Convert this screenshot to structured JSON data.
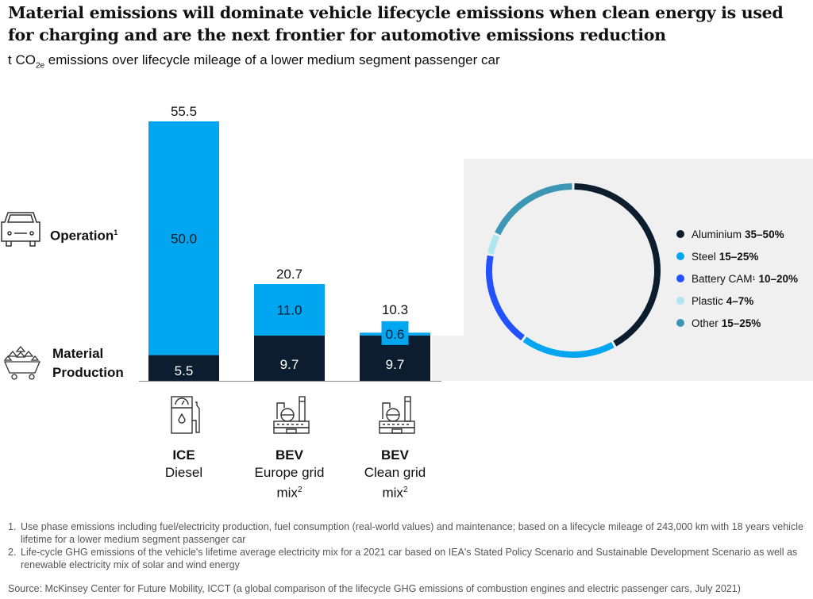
{
  "title": "Material emissions will dominate vehicle lifecycle emissions when clean energy is used for charging and are the next frontier for automotive emissions reduction",
  "subtitle": {
    "pre": "t CO",
    "sub": "2e",
    "post": " emissions over lifecycle mileage of a lower medium segment passenger car"
  },
  "chart_data": [
    {
      "type": "bar",
      "stacked": true,
      "categories": [
        {
          "bold": "ICE",
          "sub": "Diesel",
          "sup": ""
        },
        {
          "bold": "BEV",
          "sub": "Europe grid mix",
          "sup": "2"
        },
        {
          "bold": "BEV",
          "sub": "Clean grid mix",
          "sup": "2"
        }
      ],
      "series": [
        {
          "name": "Material Production",
          "values": [
            5.5,
            9.7,
            9.7
          ],
          "color": "#0b1d2e"
        },
        {
          "name": "Operation",
          "sup": "1",
          "values": [
            50.0,
            11.0,
            0.6
          ],
          "color": "#00a6f0"
        }
      ],
      "totals": [
        55.5,
        20.7,
        10.3
      ],
      "value_labels": {
        "Operation": [
          "50.0",
          "11.0",
          "0.6"
        ],
        "Material Production": [
          "5.5",
          "9.7",
          "9.7"
        ],
        "totals": [
          "55.5",
          "20.7",
          "10.3"
        ]
      },
      "icons": [
        "car-icon",
        "mine-cart-icon",
        "fuel-pump-icon",
        "power-plant-icon",
        "power-plant-icon"
      ]
    },
    {
      "type": "pie",
      "donut": true,
      "slices": [
        {
          "label": "Aluminium",
          "range": "35–50%",
          "value": 42,
          "color": "#0b1d2e"
        },
        {
          "label": "Steel",
          "range": "15–25%",
          "value": 18,
          "color": "#00a6f0"
        },
        {
          "label": "Battery CAM",
          "sup": "1",
          "range": "10–20%",
          "value": 18,
          "color": "#2251ff"
        },
        {
          "label": "Plastic",
          "range": "4–7%",
          "value": 4,
          "color": "#aee6f0"
        },
        {
          "label": "Other",
          "range": "15–25%",
          "value": 18,
          "color": "#3c96b4"
        }
      ],
      "legend": "right"
    }
  ],
  "footnotes": [
    {
      "num": "1.",
      "text": "Use phase emissions including fuel/electricity production, fuel consumption (real-world values) and maintenance; based on a lifecycle mileage of 243,000 km with 18 years vehicle lifetime for a lower medium segment passenger car"
    },
    {
      "num": "2.",
      "text": "Life-cycle GHG emissions of the vehicle's lifetime average electricity mix for a 2021 car based on IEA's Stated Policy Scenario and Sustainable Development Scenario as well as renewable electricity mix of solar and wind energy"
    }
  ],
  "source": "Source: McKinsey Center for Future Mobility, ICCT (a global comparison of the lifecycle GHG emissions of combustion engines and electric passenger cars, July 2021)"
}
